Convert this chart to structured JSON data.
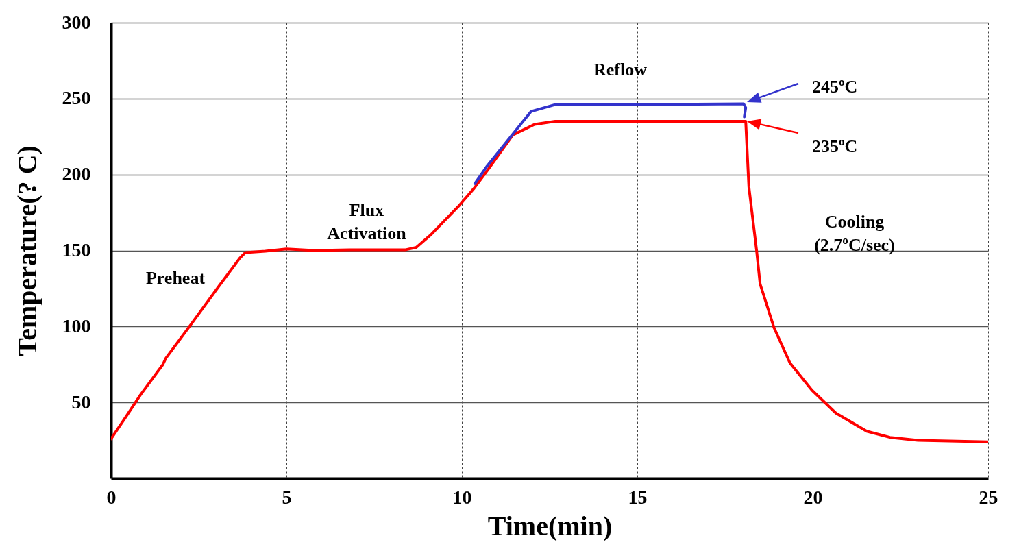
{
  "chart_data": {
    "type": "line",
    "xlabel": "Time(min)",
    "ylabel": "Temperature(? C)",
    "xlim": [
      0,
      25
    ],
    "xticks": [
      0,
      5,
      10,
      15,
      20,
      25
    ],
    "ylim": [
      0,
      300
    ],
    "yticks": [
      50,
      100,
      150,
      200,
      250,
      300
    ],
    "grid": true,
    "line_style": "solid",
    "series": [
      {
        "color": "#ff0000",
        "x": [
          0,
          0.35,
          0.84,
          1.48,
          1.56,
          2.3,
          3.09,
          3.67,
          3.83,
          4.4,
          5.0,
          5.8,
          7.0,
          8.4,
          8.7,
          9.1,
          9.9,
          10.35,
          10.8,
          11.45,
          12.07,
          12.66,
          14.0,
          16.2,
          18.09,
          18.18,
          18.4,
          18.5,
          18.9,
          19.35,
          19.98,
          20.66,
          21.54,
          22.2,
          23.0,
          25.0
        ],
        "values": [
          26,
          38,
          55,
          75,
          79,
          102,
          127,
          145,
          148.7,
          149.5,
          151,
          150,
          150.5,
          150.5,
          152,
          160,
          179,
          191,
          205,
          226,
          233,
          235,
          235,
          235,
          235,
          192,
          150,
          128,
          99,
          76,
          58,
          43,
          31,
          27,
          25,
          24
        ]
      },
      {
        "color": "#3333cc",
        "x": [
          10.37,
          10.7,
          11.29,
          11.97,
          12.66,
          15.0,
          18.03,
          18.09,
          18.05
        ],
        "values": [
          194,
          205,
          222,
          241.5,
          246,
          246,
          246.5,
          244,
          238
        ]
      }
    ],
    "annotations": [
      "245ºC",
      "235ºC",
      "Preheat",
      "Flux\nActivation",
      "Reflow",
      "Cooling\n(2.7ºC/sec)"
    ]
  }
}
